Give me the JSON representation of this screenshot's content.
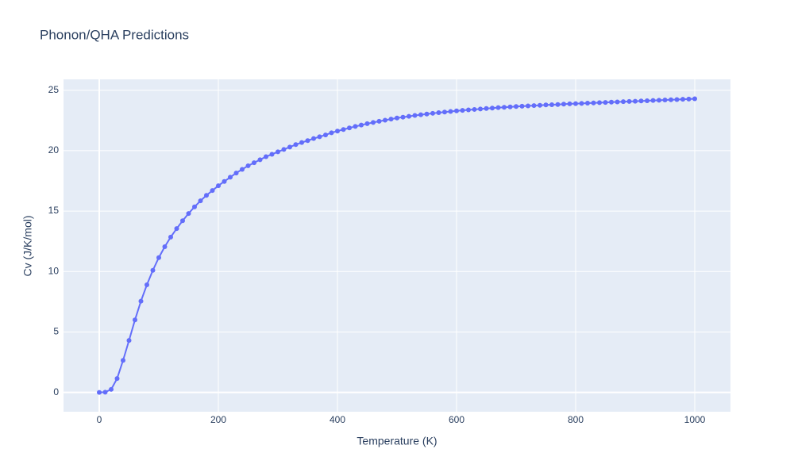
{
  "chart_data": {
    "type": "scatter",
    "title": "Phonon/QHA Predictions",
    "x_label": "Temperature (K)",
    "y_label": "Cv (J/K/mol)",
    "x": [
      0,
      10,
      20,
      30,
      40,
      50,
      60,
      70,
      80,
      90,
      100,
      110,
      120,
      130,
      140,
      150,
      160,
      170,
      180,
      190,
      200,
      210,
      220,
      230,
      240,
      250,
      260,
      270,
      280,
      290,
      300,
      310,
      320,
      330,
      340,
      350,
      360,
      370,
      380,
      390,
      400,
      410,
      420,
      430,
      440,
      450,
      460,
      470,
      480,
      490,
      500,
      510,
      520,
      530,
      540,
      550,
      560,
      570,
      580,
      590,
      600,
      610,
      620,
      630,
      640,
      650,
      660,
      670,
      680,
      690,
      700,
      710,
      720,
      730,
      740,
      750,
      760,
      770,
      780,
      790,
      800,
      810,
      820,
      830,
      840,
      850,
      860,
      870,
      880,
      890,
      900,
      910,
      920,
      930,
      940,
      950,
      960,
      970,
      980,
      990,
      1000
    ],
    "series": [
      {
        "color": "#636efa",
        "values": [
          0,
          0.02,
          0.25,
          1.15,
          2.65,
          4.3,
          6.0,
          7.55,
          8.9,
          10.1,
          11.15,
          12.05,
          12.85,
          13.55,
          14.2,
          14.8,
          15.35,
          15.85,
          16.3,
          16.7,
          17.1,
          17.45,
          17.8,
          18.15,
          18.45,
          18.75,
          19.0,
          19.25,
          19.5,
          19.7,
          19.9,
          20.1,
          20.3,
          20.5,
          20.67,
          20.83,
          21.0,
          21.15,
          21.3,
          21.48,
          21.62,
          21.75,
          21.88,
          22.0,
          22.12,
          22.23,
          22.33,
          22.43,
          22.52,
          22.61,
          22.7,
          22.77,
          22.84,
          22.91,
          22.97,
          23.03,
          23.09,
          23.14,
          23.19,
          23.24,
          23.29,
          23.33,
          23.37,
          23.41,
          23.45,
          23.49,
          23.52,
          23.56,
          23.59,
          23.62,
          23.65,
          23.68,
          23.7,
          23.73,
          23.75,
          23.78,
          23.8,
          23.82,
          23.85,
          23.87,
          23.89,
          23.91,
          23.93,
          23.95,
          23.97,
          23.99,
          24.01,
          24.03,
          24.05,
          24.07,
          24.09,
          24.11,
          24.13,
          24.15,
          24.17,
          24.19,
          24.21,
          24.23,
          24.25,
          24.27,
          24.29
        ]
      }
    ],
    "xlim": [
      -60,
      1060
    ],
    "ylim": [
      -1.6,
      25.9
    ],
    "xticks": [
      0,
      200,
      400,
      600,
      800,
      1000
    ],
    "yticks": [
      0,
      5,
      10,
      15,
      20,
      25
    ],
    "grid": true,
    "plot_bg": "#e5ecf6"
  }
}
